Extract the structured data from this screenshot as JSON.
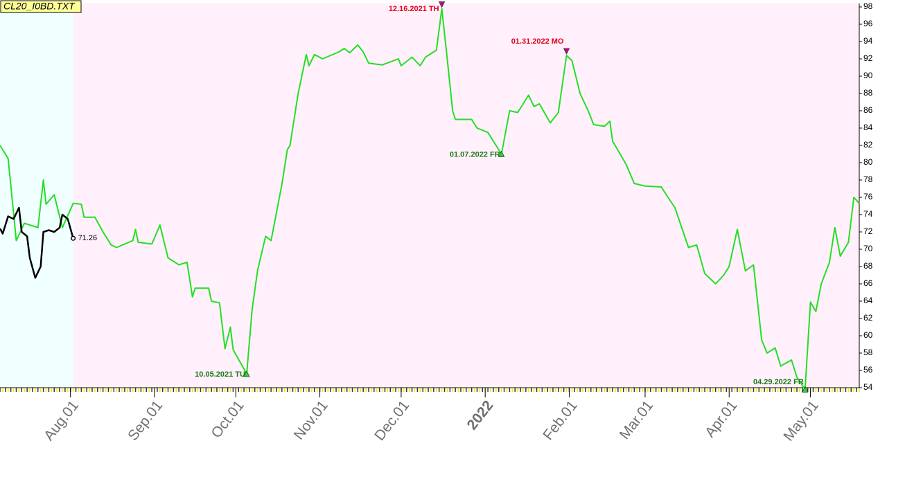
{
  "chart_data": {
    "type": "line",
    "title": "CL20_I0BD.TXT",
    "xlim": [
      "2021-07-06",
      "2022-05-19"
    ],
    "ylim": [
      54,
      98
    ],
    "yticks": [
      54,
      56,
      58,
      60,
      62,
      64,
      66,
      68,
      70,
      72,
      74,
      76,
      78,
      80,
      82,
      84,
      86,
      88,
      90,
      92,
      94,
      96,
      98
    ],
    "xticks": [
      {
        "value": "2021-08-01",
        "label": "Aug.01"
      },
      {
        "value": "2021-09-01",
        "label": "Sep.01"
      },
      {
        "value": "2021-10-01",
        "label": "Oct.01"
      },
      {
        "value": "2021-11-01",
        "label": "Nov.01"
      },
      {
        "value": "2021-12-01",
        "label": "Dec.01"
      },
      {
        "value": "2022-01-01",
        "label": "2022"
      },
      {
        "value": "2022-02-01",
        "label": "Feb.01"
      },
      {
        "value": "2022-03-01",
        "label": "Mar.01"
      },
      {
        "value": "2022-04-01",
        "label": "Apr.01"
      },
      {
        "value": "2022-05-01",
        "label": "May.01"
      }
    ],
    "shading": [
      {
        "from": "2021-07-06",
        "to": "2021-08-02",
        "color": "#f0ffff"
      },
      {
        "from": "2021-08-02",
        "to": "2022-05-19",
        "color": "#fff0fb"
      }
    ],
    "series": [
      {
        "color": "#22e022",
        "x": [
          "2021-07-06",
          "2021-07-09",
          "2021-07-12",
          "2021-07-15",
          "2021-07-20",
          "2021-07-22",
          "2021-07-23",
          "2021-07-26",
          "2021-07-29",
          "2021-08-02",
          "2021-08-05",
          "2021-08-06",
          "2021-08-10",
          "2021-08-13",
          "2021-08-16",
          "2021-08-18",
          "2021-08-24",
          "2021-08-25",
          "2021-08-26",
          "2021-08-31",
          "2021-09-03",
          "2021-09-06",
          "2021-09-10",
          "2021-09-13",
          "2021-09-15",
          "2021-09-16",
          "2021-09-21",
          "2021-09-22",
          "2021-09-25",
          "2021-09-27",
          "2021-09-29",
          "2021-09-30",
          "2021-10-05",
          "2021-10-07",
          "2021-10-09",
          "2021-10-12",
          "2021-10-14",
          "2021-10-18",
          "2021-10-20",
          "2021-10-21",
          "2021-10-24",
          "2021-10-27",
          "2021-10-28",
          "2021-10-30",
          "2021-11-02",
          "2021-11-08",
          "2021-11-10",
          "2021-11-12",
          "2021-11-15",
          "2021-11-17",
          "2021-11-19",
          "2021-11-24",
          "2021-11-30",
          "2021-12-01",
          "2021-12-05",
          "2021-12-08",
          "2021-12-10",
          "2021-12-14",
          "2021-12-16",
          "2021-12-18",
          "2021-12-20",
          "2021-12-21",
          "2021-12-27",
          "2021-12-29",
          "2022-01-02",
          "2022-01-05",
          "2022-01-07",
          "2022-01-10",
          "2022-01-13",
          "2022-01-17",
          "2022-01-19",
          "2022-01-21",
          "2022-01-25",
          "2022-01-28",
          "2022-01-31",
          "2022-02-02",
          "2022-02-05",
          "2022-02-08",
          "2022-02-10",
          "2022-02-14",
          "2022-02-16",
          "2022-02-17",
          "2022-02-22",
          "2022-02-25",
          "2022-03-01",
          "2022-03-07",
          "2022-03-09",
          "2022-03-12",
          "2022-03-17",
          "2022-03-20",
          "2022-03-23",
          "2022-03-27",
          "2022-03-30",
          "2022-04-01",
          "2022-04-04",
          "2022-04-07",
          "2022-04-10",
          "2022-04-13",
          "2022-04-15",
          "2022-04-18",
          "2022-04-20",
          "2022-04-24",
          "2022-04-26",
          "2022-04-29",
          "2022-05-01",
          "2022-05-03",
          "2022-05-05",
          "2022-05-08",
          "2022-05-10",
          "2022-05-12",
          "2022-05-15",
          "2022-05-17",
          "2022-05-19"
        ],
        "values": [
          82,
          80.5,
          71,
          73,
          72.5,
          78,
          75.2,
          76.3,
          72.5,
          75.3,
          75.2,
          73.7,
          73.7,
          72,
          70.5,
          70.2,
          71,
          72.3,
          70.8,
          70.6,
          72.8,
          69,
          68.2,
          68.5,
          64.5,
          65.5,
          65.5,
          64,
          63.8,
          58.5,
          61,
          58.4,
          55.6,
          63,
          67.5,
          71.5,
          71,
          77.5,
          81.5,
          82,
          88,
          92.5,
          91.2,
          92.5,
          92,
          92.8,
          93.2,
          92.7,
          93.6,
          92.8,
          91.5,
          91.3,
          92,
          91.2,
          92.2,
          91.2,
          92.2,
          93,
          97.8,
          92,
          86,
          85,
          85,
          84,
          83.5,
          82,
          81,
          86,
          85.8,
          87.8,
          86.5,
          86.8,
          84.6,
          85.8,
          92.4,
          91.8,
          88,
          86,
          84.4,
          84.2,
          84.8,
          82.5,
          79.8,
          77.6,
          77.3,
          77.2,
          76.2,
          74.8,
          70.2,
          70.5,
          67.2,
          66,
          67,
          68,
          72.3,
          67.5,
          68.2,
          59.5,
          58,
          58.6,
          56.5,
          57.2,
          55.2,
          53.8,
          63.9,
          62.8,
          66,
          68.5,
          72.5,
          69.2,
          70.8,
          76,
          75.3
        ]
      },
      {
        "color": "#000000",
        "x": [
          "2021-07-06",
          "2021-07-07",
          "2021-07-09",
          "2021-07-11",
          "2021-07-13",
          "2021-07-14",
          "2021-07-16",
          "2021-07-17",
          "2021-07-19",
          "2021-07-21",
          "2021-07-22",
          "2021-07-24",
          "2021-07-26",
          "2021-07-28",
          "2021-07-29",
          "2021-07-31",
          "2021-08-02"
        ],
        "values": [
          72.4,
          71.8,
          73.8,
          73.5,
          74.8,
          72,
          71.5,
          69,
          66.7,
          68,
          72,
          72.2,
          72,
          72.5,
          74,
          73.5,
          71.26
        ]
      }
    ],
    "annotations": [
      {
        "text": "12.16.2021 TH",
        "x": "2021-12-16",
        "y": 97.8,
        "kind": "high",
        "color": "#e0001a"
      },
      {
        "text": "01.31.2022 MO",
        "x": "2022-01-31",
        "y": 92.4,
        "kind": "high",
        "color": "#e0001a"
      },
      {
        "text": "10.05.2021 TU",
        "x": "2021-10-05",
        "y": 55.6,
        "kind": "low",
        "color": "#1a7a1a"
      },
      {
        "text": "01.07.2022 FR",
        "x": "2022-01-07",
        "y": 81,
        "kind": "low",
        "color": "#1a7a1a"
      },
      {
        "text": "04.29.2022 FR",
        "x": "2022-04-29",
        "y": 53.8,
        "kind": "low",
        "color": "#1a7a1a"
      }
    ]
  }
}
